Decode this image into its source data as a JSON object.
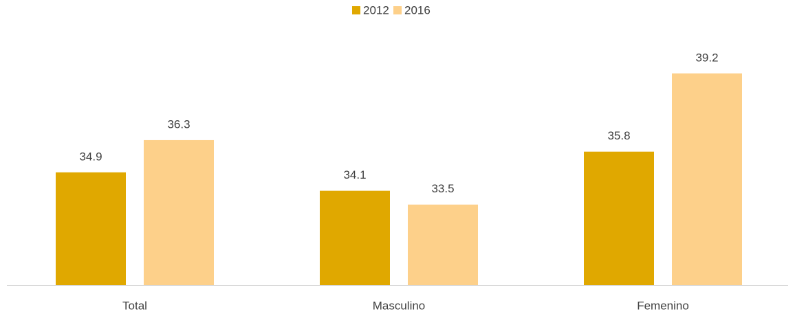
{
  "chart_data": {
    "type": "bar",
    "categories": [
      "Total",
      "Masculino",
      "Femenino"
    ],
    "series": [
      {
        "name": "2012",
        "color": "#e0a800",
        "values": [
          34.9,
          34.1,
          35.8
        ]
      },
      {
        "name": "2016",
        "color": "#fdd08a",
        "values": [
          36.3,
          33.5,
          39.2
        ]
      }
    ],
    "ylim": [
      30,
      40
    ],
    "legend": "top"
  }
}
